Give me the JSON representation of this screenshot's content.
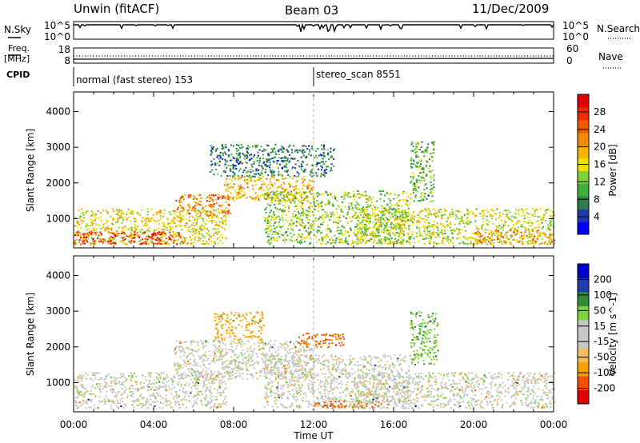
{
  "header": {
    "station": "Unwin (fitACF)",
    "beam": "Beam 03",
    "date": "11/Dec/2009"
  },
  "top_panels": {
    "nsky_label": "N.Sky",
    "nsky_ticks": [
      "10^5",
      "10^0"
    ],
    "nsearch_label": "N.Search",
    "nsearch_ticks": [
      "10^5",
      "10^0"
    ],
    "freq_label_1": "Freq.",
    "freq_label_2": "[MHz]",
    "freq_ticks": [
      "18",
      "8"
    ],
    "nave_label": "Nave",
    "nave_ticks": [
      "60",
      "0"
    ],
    "cpid_label": "CPID",
    "cpid_segments": [
      {
        "label": "normal (fast stereo) 153",
        "start_hour": 0
      },
      {
        "label": "stereo_scan 8551",
        "start_hour": 12
      }
    ]
  },
  "colors": {
    "power_scale": [
      "#0000ff",
      "#1f3ca8",
      "#2e7d4a",
      "#3fae3a",
      "#7fd23a",
      "#f0e000",
      "#f7b500",
      "#f08a00",
      "#f05a00",
      "#ee2a00",
      "#e00000"
    ],
    "velocity_scale": [
      "#e00000",
      "#f55000",
      "#f7a000",
      "#f0c060",
      "#c8c8c8",
      "#c8c8c8",
      "#7fd23a",
      "#2e8b3a",
      "#1f3ca8",
      "#0000cc"
    ],
    "gray": "#c8c8c8"
  },
  "chart_data": [
    {
      "type": "heatmap",
      "panel": "power",
      "title": "",
      "xlabel": "Time UT",
      "ylabel": "Slant Range [km]",
      "x_ticks": [
        "00:00",
        "04:00",
        "08:00",
        "12:00",
        "16:00",
        "20:00",
        "00:00"
      ],
      "xlim_hours": [
        0,
        24
      ],
      "y_ticks": [
        "1000",
        "2000",
        "3000",
        "4000"
      ],
      "ylim": [
        180,
        4550
      ],
      "colorbar_label": "Power [dB]",
      "colorbar_ticks": [
        "4",
        "8",
        "12",
        "16",
        "20",
        "24",
        "28"
      ],
      "colorbar_range": [
        0,
        30
      ],
      "echo_regions": [
        {
          "t0": 0.0,
          "t1": 7.6,
          "r0": 300,
          "r1": 1300,
          "level": 16
        },
        {
          "t0": 0.0,
          "t1": 5.5,
          "r0": 300,
          "r1": 650,
          "level": 26
        },
        {
          "t0": 5.0,
          "t1": 7.8,
          "r0": 1100,
          "r1": 1700,
          "level": 22
        },
        {
          "t0": 7.5,
          "t1": 12.0,
          "r0": 1500,
          "r1": 2200,
          "level": 18
        },
        {
          "t0": 9.5,
          "t1": 16.8,
          "r0": 300,
          "r1": 1800,
          "level": 12
        },
        {
          "t0": 14.0,
          "t1": 24.0,
          "r0": 300,
          "r1": 1300,
          "level": 14
        },
        {
          "t0": 20.0,
          "t1": 24.0,
          "r0": 300,
          "r1": 700,
          "level": 20
        },
        {
          "t0": 6.8,
          "t1": 13.0,
          "r0": 2200,
          "r1": 3100,
          "level": 6
        },
        {
          "t0": 16.8,
          "t1": 18.0,
          "r0": 1500,
          "r1": 3200,
          "level": 10
        }
      ]
    },
    {
      "type": "heatmap",
      "panel": "velocity",
      "title": "",
      "xlabel": "Time UT",
      "ylabel": "Slant Range [km]",
      "x_ticks": [
        "00:00",
        "04:00",
        "08:00",
        "12:00",
        "16:00",
        "20:00",
        "00:00"
      ],
      "xlim_hours": [
        0,
        24
      ],
      "y_ticks": [
        "1000",
        "2000",
        "3000",
        "4000"
      ],
      "ylim": [
        180,
        4550
      ],
      "colorbar_label": "Velocity [m s^-1]",
      "colorbar_ticks": [
        "200",
        "100",
        "50",
        "15",
        "-15",
        "-50",
        "-100",
        "-200"
      ],
      "colorbar_range": [
        -250,
        250
      ],
      "echo_regions": [
        {
          "t0": 0.0,
          "t1": 7.6,
          "r0": 300,
          "r1": 1300,
          "level": 0
        },
        {
          "t0": 5.0,
          "t1": 12.0,
          "r0": 1100,
          "r1": 2200,
          "level": 0
        },
        {
          "t0": 7.0,
          "t1": 9.5,
          "r0": 2200,
          "r1": 3000,
          "level": -40
        },
        {
          "t0": 9.5,
          "t1": 16.8,
          "r0": 300,
          "r1": 1800,
          "level": 0
        },
        {
          "t0": 11.2,
          "t1": 13.5,
          "r0": 2000,
          "r1": 2400,
          "level": -90
        },
        {
          "t0": 12.0,
          "t1": 15.5,
          "r0": 300,
          "r1": 500,
          "level": -90
        },
        {
          "t0": 14.0,
          "t1": 24.0,
          "r0": 300,
          "r1": 1300,
          "level": 0
        },
        {
          "t0": 16.8,
          "t1": 18.2,
          "r0": 1500,
          "r1": 3000,
          "level": 40
        }
      ]
    }
  ]
}
